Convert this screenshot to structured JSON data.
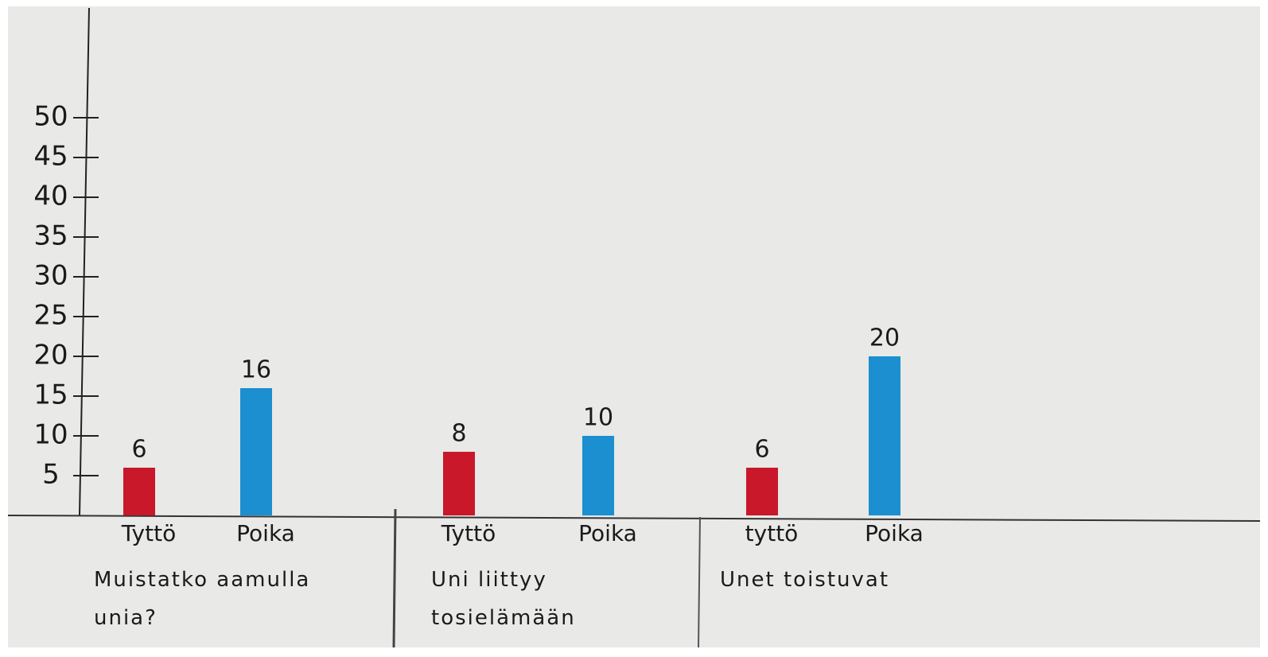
{
  "chart_data": {
    "type": "bar",
    "categories": [
      "Tyttö",
      "Poika",
      "Tyttö",
      "Poika",
      "tyttö",
      "Poika"
    ],
    "values": [
      6,
      16,
      8,
      10,
      6,
      20
    ],
    "colors": [
      "#c8182a",
      "#1b8fcf",
      "#c8182a",
      "#1b8fcf",
      "#c8182a",
      "#1b8fcf"
    ],
    "groups": [
      "Muistatko aamulla unia?",
      "Uni liittyy tosielämään",
      "Unet toistuvat"
    ],
    "ylim": [
      0,
      60
    ],
    "yticks": [
      5,
      10,
      15,
      20,
      25,
      30,
      35,
      40,
      45,
      50
    ]
  }
}
